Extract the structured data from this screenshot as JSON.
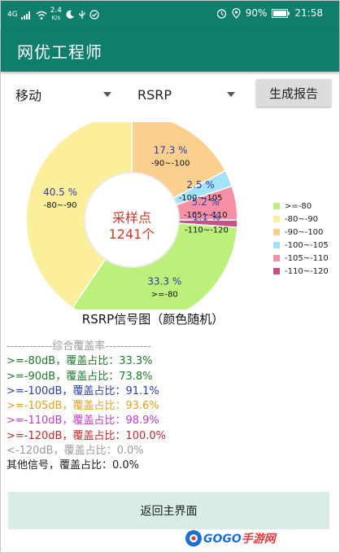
{
  "status_bar": {
    "network": "4G",
    "speed": "2.4",
    "speed_unit": "K/s",
    "battery": "90%",
    "time": "21:58"
  },
  "app": {
    "title": "网优工程师"
  },
  "toolbar": {
    "operator_value": "移动",
    "metric_value": "RSRP",
    "report_label": "生成报告"
  },
  "chart_data": {
    "type": "pie",
    "title": "RSRP信号图（颜色随机）",
    "center_label": "采样点",
    "center_count": "1241个",
    "legend_position": "right",
    "slices": [
      {
        "label": ">=-80",
        "value": 33.3,
        "display": "33.3 %",
        "color": "#bdf07a"
      },
      {
        "label": "-80~-90",
        "value": 40.5,
        "display": "40.5 %",
        "color": "#fcef9c"
      },
      {
        "label": "-90~-100",
        "value": 17.3,
        "display": "17.3 %",
        "color": "#fbd08f"
      },
      {
        "label": "-100~-105",
        "value": 2.5,
        "display": "2.5 %",
        "color": "#a3e2f7"
      },
      {
        "label": "-105~-110",
        "value": 5.2,
        "display": "5.2 %",
        "color": "#f690a6"
      },
      {
        "label": "-110~-120",
        "value": 1.1,
        "display": "1.1 %",
        "color": "#c94f86"
      }
    ]
  },
  "legend": [
    {
      "label": ">=-80",
      "color": "#bdf07a"
    },
    {
      "label": "-80~-90",
      "color": "#fcef9c"
    },
    {
      "label": "-90~-100",
      "color": "#fbd08f"
    },
    {
      "label": "-100~-105",
      "color": "#a3e2f7"
    },
    {
      "label": "-105~-110",
      "color": "#f690a6"
    },
    {
      "label": "-110~-120",
      "color": "#c94f86"
    }
  ],
  "stats": {
    "header": "------------综合覆盖率------------",
    "lines": [
      {
        "text": ">=-80dB，覆盖占比：33.3%",
        "color": "#1d7a2d"
      },
      {
        "text": ">=-90dB，覆盖占比：73.8%",
        "color": "#1d7a2d"
      },
      {
        "text": ">=-100dB，覆盖占比：91.1%",
        "color": "#2a3ea8"
      },
      {
        "text": ">=-105dB，覆盖占比：93.6%",
        "color": "#e0a21f"
      },
      {
        "text": ">=-110dB，覆盖占比：98.9%",
        "color": "#c23bc6"
      },
      {
        "text": ">=-120dB，覆盖占比：100.0%",
        "color": "#c7262b"
      },
      {
        "text": "<-120dB，覆盖占比：0.0%",
        "color": "#9b9b9b"
      },
      {
        "text": "其他信号，覆盖占比：0.0%",
        "color": "#222222"
      }
    ]
  },
  "return_label": "返回主界面",
  "watermark": {
    "brand_a": "GOGO",
    "brand_b": "手游网"
  }
}
